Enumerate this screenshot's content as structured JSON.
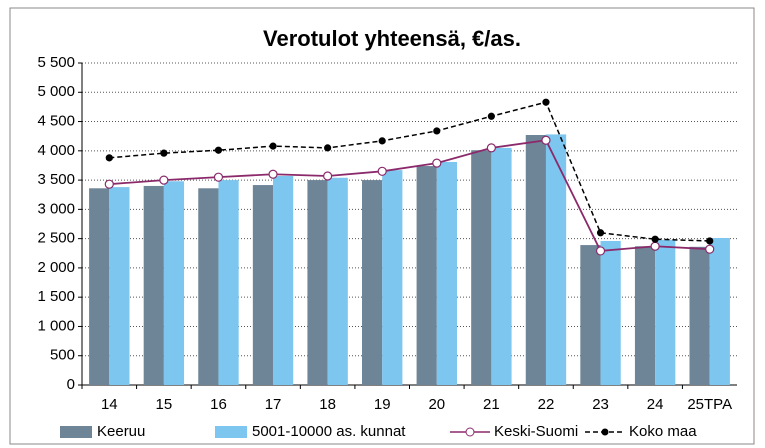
{
  "chart_data": {
    "type": "bar",
    "title": "Verotulot yhteensä, €/as.",
    "categories": [
      "14",
      "15",
      "16",
      "17",
      "18",
      "19",
      "20",
      "21",
      "22",
      "23",
      "24",
      "25TPA"
    ],
    "series": [
      {
        "name": "Keeruu",
        "kind": "bar",
        "color": "#6e8497",
        "values": [
          3360,
          3400,
          3360,
          3415,
          3500,
          3500,
          3740,
          4010,
          4270,
          2390,
          2370,
          2360
        ]
      },
      {
        "name": "5001-10000 as. kunnat",
        "kind": "bar",
        "color": "#7cc6ef",
        "values": [
          3380,
          3480,
          3500,
          3570,
          3540,
          3670,
          3810,
          4050,
          4280,
          2460,
          2480,
          2510
        ]
      },
      {
        "name": "Keski-Suomi",
        "kind": "line",
        "color": "#8b2a6b",
        "dashed": false,
        "marker_fill": "#ffffff",
        "values": [
          3430,
          3500,
          3550,
          3600,
          3570,
          3650,
          3790,
          4050,
          4180,
          2290,
          2370,
          2320
        ]
      },
      {
        "name": "Koko maa",
        "kind": "line",
        "color": "#000000",
        "dashed": true,
        "marker_fill": "#000000",
        "values": [
          3880,
          3960,
          4010,
          4080,
          4050,
          4170,
          4340,
          4590,
          4830,
          2600,
          2490,
          2460
        ]
      }
    ],
    "ylim": [
      0,
      5500
    ],
    "yticks": [
      0,
      500,
      {
        "value": 1000,
        "label": "1 000"
      },
      {
        "value": 1500,
        "label": "1 500"
      },
      {
        "value": 2000,
        "label": "2 000"
      },
      {
        "value": 2500,
        "label": "2 500"
      },
      {
        "value": 3000,
        "label": "3 000"
      },
      {
        "value": 3500,
        "label": "3 500"
      },
      {
        "value": 4000,
        "label": "4 000"
      },
      {
        "value": 4500,
        "label": "4 500"
      },
      {
        "value": 5000,
        "label": "5 000"
      },
      {
        "value": 5500,
        "label": "5 500"
      }
    ],
    "grid": true,
    "legend": "bottom"
  }
}
